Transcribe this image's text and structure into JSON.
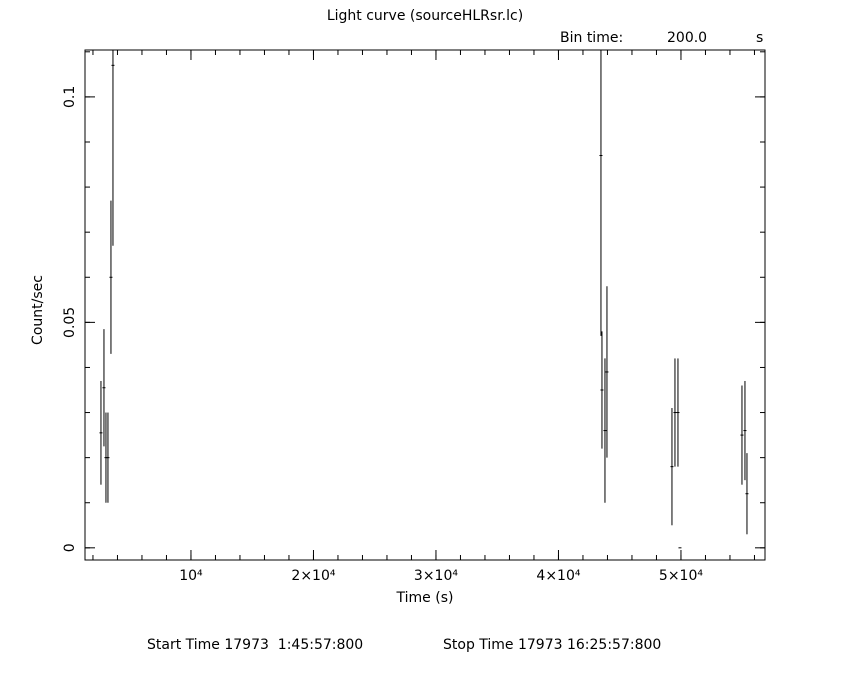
{
  "chart_data": {
    "type": "errorbar",
    "title": "Light curve (sourceHLRsr.lc)",
    "bin_time_label": "Bin time:",
    "bin_time": "200.0",
    "bin_time_unit": "s",
    "xlabel": "Time (s)",
    "ylabel": "Count/sec",
    "start_time": "Start Time 17973  1:45:57:800",
    "stop_time": "Stop Time 17973 16:25:57:800",
    "color": "#000000",
    "x": [
      2653,
      2898,
      3061,
      3224,
      3469,
      3633,
      43469,
      43551,
      43796,
      43959,
      49265,
      49510,
      49755,
      49918,
      54980,
      55224,
      55388
    ],
    "series": [
      {
        "values": [
          0.0255,
          0.0355,
          0.02,
          0.02,
          0.06,
          0.107,
          0.087,
          0.035,
          0.026,
          0.039,
          0.018,
          0.03,
          0.03,
          0,
          0.025,
          0.026,
          0.012
        ],
        "errors": [
          0.0115,
          0.013,
          0.01,
          0.01,
          0.017,
          0.04,
          0.04,
          0.013,
          0.016,
          0.019,
          0.013,
          0.012,
          0.012,
          0,
          0.011,
          0.011,
          0.009
        ]
      }
    ],
    "xlim": [
      1350,
      56860
    ],
    "ylim": [
      -0.0027,
      0.1104
    ],
    "xticks": [
      {
        "value": 10000,
        "label": "10⁴"
      },
      {
        "value": 20000,
        "label": "2×10⁴"
      },
      {
        "value": 30000,
        "label": "3×10⁴"
      },
      {
        "value": 40000,
        "label": "4×10⁴"
      },
      {
        "value": 50000,
        "label": "5×10⁴"
      }
    ],
    "yticks": [
      0,
      0.05,
      0.1
    ]
  }
}
